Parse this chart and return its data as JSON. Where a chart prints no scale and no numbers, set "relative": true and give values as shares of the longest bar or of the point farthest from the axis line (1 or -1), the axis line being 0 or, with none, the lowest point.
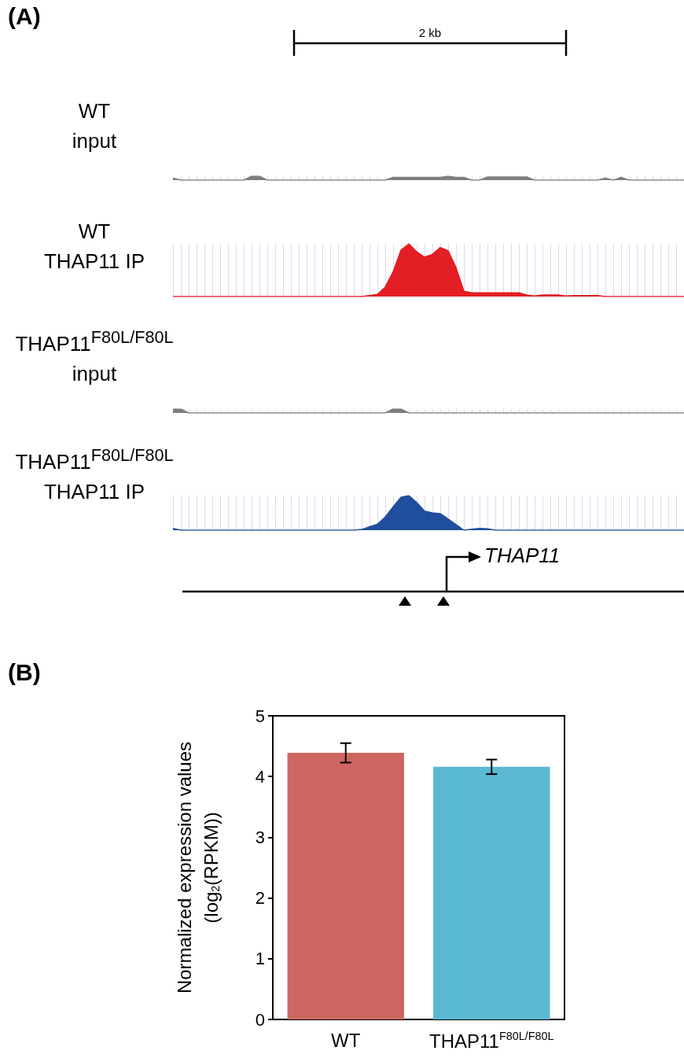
{
  "chart_data": [
    {
      "type": "area",
      "relative": true,
      "title": "WT\ninput",
      "annotations": [
        "(A)",
        "2 kb"
      ],
      "grid": "x",
      "categories": [
        null,
        null,
        null,
        null,
        null,
        null,
        null,
        null,
        null,
        null,
        null,
        null,
        null,
        null,
        null,
        null,
        null,
        null,
        null,
        null,
        null,
        null,
        null,
        null,
        null,
        null,
        null,
        null,
        null,
        null,
        null,
        null,
        null,
        null,
        null,
        null,
        null,
        null,
        null,
        null,
        null,
        null,
        null,
        null,
        null,
        null,
        null,
        null,
        null,
        null,
        null,
        null,
        null,
        null,
        null,
        null,
        null,
        null,
        null,
        null,
        null,
        null,
        null,
        null,
        null,
        null
      ],
      "series": [
        {
          "color": "#7f7f7f",
          "values": [
            0.5,
            0,
            0,
            0,
            0,
            0,
            0,
            0,
            0,
            0,
            1,
            1,
            0,
            0,
            0,
            0,
            0,
            0,
            0,
            0,
            0,
            0,
            0,
            0,
            0,
            0,
            0,
            0,
            0.7,
            0.7,
            0.7,
            0.7,
            0.7,
            0.7,
            0.7,
            1,
            0.7,
            0.7,
            0,
            0,
            0.8,
            0.8,
            0.8,
            0.8,
            0.8,
            0.8,
            0,
            0,
            0,
            0,
            0,
            0,
            0,
            0,
            0,
            0.5,
            0,
            0.7,
            0,
            0,
            0,
            0,
            0,
            0,
            0,
            0
          ]
        }
      ]
    },
    {
      "type": "area",
      "relative": true,
      "title": "WT\nTHAP11 IP",
      "grid": "x",
      "categories": [
        null,
        null,
        null,
        null,
        null,
        null,
        null,
        null,
        null,
        null,
        null,
        null,
        null,
        null,
        null,
        null,
        null,
        null,
        null,
        null,
        null,
        null,
        null,
        null,
        null,
        null,
        null,
        null,
        null,
        null,
        null,
        null,
        null,
        null,
        null,
        null,
        null,
        null,
        null,
        null,
        null,
        null,
        null,
        null,
        null,
        null,
        null,
        null,
        null,
        null,
        null,
        null,
        null,
        null,
        null,
        null,
        null,
        null,
        null,
        null,
        null,
        null,
        null,
        null,
        null,
        null
      ],
      "series": [
        {
          "color": "#e31e24",
          "values": [
            0,
            0,
            0,
            0,
            0,
            0,
            0,
            0,
            0,
            0,
            0,
            0,
            0,
            0,
            0,
            0,
            0,
            0,
            0,
            0,
            0,
            0,
            0,
            0,
            0,
            0.02,
            0.04,
            0.18,
            0.47,
            0.88,
            1,
            0.85,
            0.75,
            0.8,
            0.93,
            0.87,
            0.55,
            0.1,
            0.07,
            0.07,
            0.07,
            0.07,
            0.07,
            0.07,
            0.07,
            0.03,
            0.01,
            0.03,
            0.03,
            0.03,
            0.01,
            0.02,
            0.02,
            0.02,
            0.02,
            0,
            0,
            0,
            0,
            0,
            0,
            0,
            0,
            0,
            0,
            0
          ]
        }
      ]
    },
    {
      "type": "area",
      "relative": true,
      "title": "THAP11$^{F80L/F80L}$\ninput",
      "grid": "x",
      "categories": [
        null,
        null,
        null,
        null,
        null,
        null,
        null,
        null,
        null,
        null,
        null,
        null,
        null,
        null,
        null,
        null,
        null,
        null,
        null,
        null,
        null,
        null,
        null,
        null,
        null,
        null,
        null,
        null,
        null,
        null,
        null,
        null,
        null,
        null,
        null,
        null,
        null,
        null,
        null,
        null,
        null,
        null,
        null,
        null,
        null,
        null,
        null,
        null,
        null,
        null,
        null,
        null,
        null,
        null,
        null,
        null,
        null,
        null,
        null,
        null,
        null,
        null,
        null,
        null,
        null,
        null
      ],
      "series": [
        {
          "color": "#7f7f7f",
          "values": [
            1,
            1,
            0,
            0,
            0,
            0,
            0,
            0,
            0,
            0,
            0,
            0,
            0,
            0,
            0,
            0,
            0,
            0,
            0,
            0,
            0,
            0,
            0,
            0,
            0,
            0,
            0,
            0,
            1,
            1,
            0,
            0,
            0,
            0,
            0,
            0,
            0,
            0,
            0,
            0,
            0,
            0,
            0,
            0,
            0,
            0,
            0,
            0,
            0,
            0,
            0,
            0,
            0,
            0,
            0,
            0,
            0,
            0,
            0,
            0,
            0,
            0,
            0,
            0,
            0,
            0
          ]
        }
      ]
    },
    {
      "type": "area",
      "relative": true,
      "title": "THAP11$^{F80L/F80L}$\nTHAP11 IP",
      "annotations": [
        "THAP11"
      ],
      "grid": "x",
      "categories": [
        null,
        null,
        null,
        null,
        null,
        null,
        null,
        null,
        null,
        null,
        null,
        null,
        null,
        null,
        null,
        null,
        null,
        null,
        null,
        null,
        null,
        null,
        null,
        null,
        null,
        null,
        null,
        null,
        null,
        null,
        null,
        null,
        null,
        null,
        null,
        null,
        null,
        null,
        null,
        null,
        null,
        null,
        null,
        null,
        null,
        null,
        null,
        null,
        null,
        null,
        null,
        null,
        null,
        null,
        null,
        null,
        null,
        null,
        null,
        null,
        null,
        null,
        null,
        null,
        null,
        null
      ],
      "series": [
        {
          "color": "#1f4e9c",
          "values": [
            0.05,
            0,
            0,
            0,
            0,
            0,
            0,
            0,
            0,
            0,
            0,
            0,
            0,
            0,
            0,
            0,
            0,
            0,
            0,
            0,
            0,
            0,
            0,
            0,
            0.02,
            0.1,
            0.17,
            0.38,
            0.67,
            0.95,
            1,
            0.8,
            0.55,
            0.5,
            0.48,
            0.32,
            0.16,
            0,
            0.03,
            0.05,
            0.04,
            0,
            0,
            0,
            0,
            0,
            0,
            0,
            0,
            0,
            0,
            0,
            0,
            0,
            0,
            0,
            0,
            0,
            0,
            0,
            0,
            0,
            0,
            0,
            0,
            0
          ]
        }
      ]
    },
    {
      "type": "bar",
      "annotations": [
        "(B)"
      ],
      "ylabel": "Normalized expression values\n(log$_{2}$(RPKM))",
      "categories": [
        "WT",
        "THAP11$^{F80L/F80L}$"
      ],
      "values": [
        4.39,
        4.16
      ],
      "colors": [
        "#cd6661",
        "#5bb9d1"
      ],
      "errors": [
        0.16,
        0.12
      ],
      "ylim": [
        0,
        5
      ],
      "yticks": [
        0,
        1,
        2,
        3,
        4,
        5
      ]
    }
  ]
}
